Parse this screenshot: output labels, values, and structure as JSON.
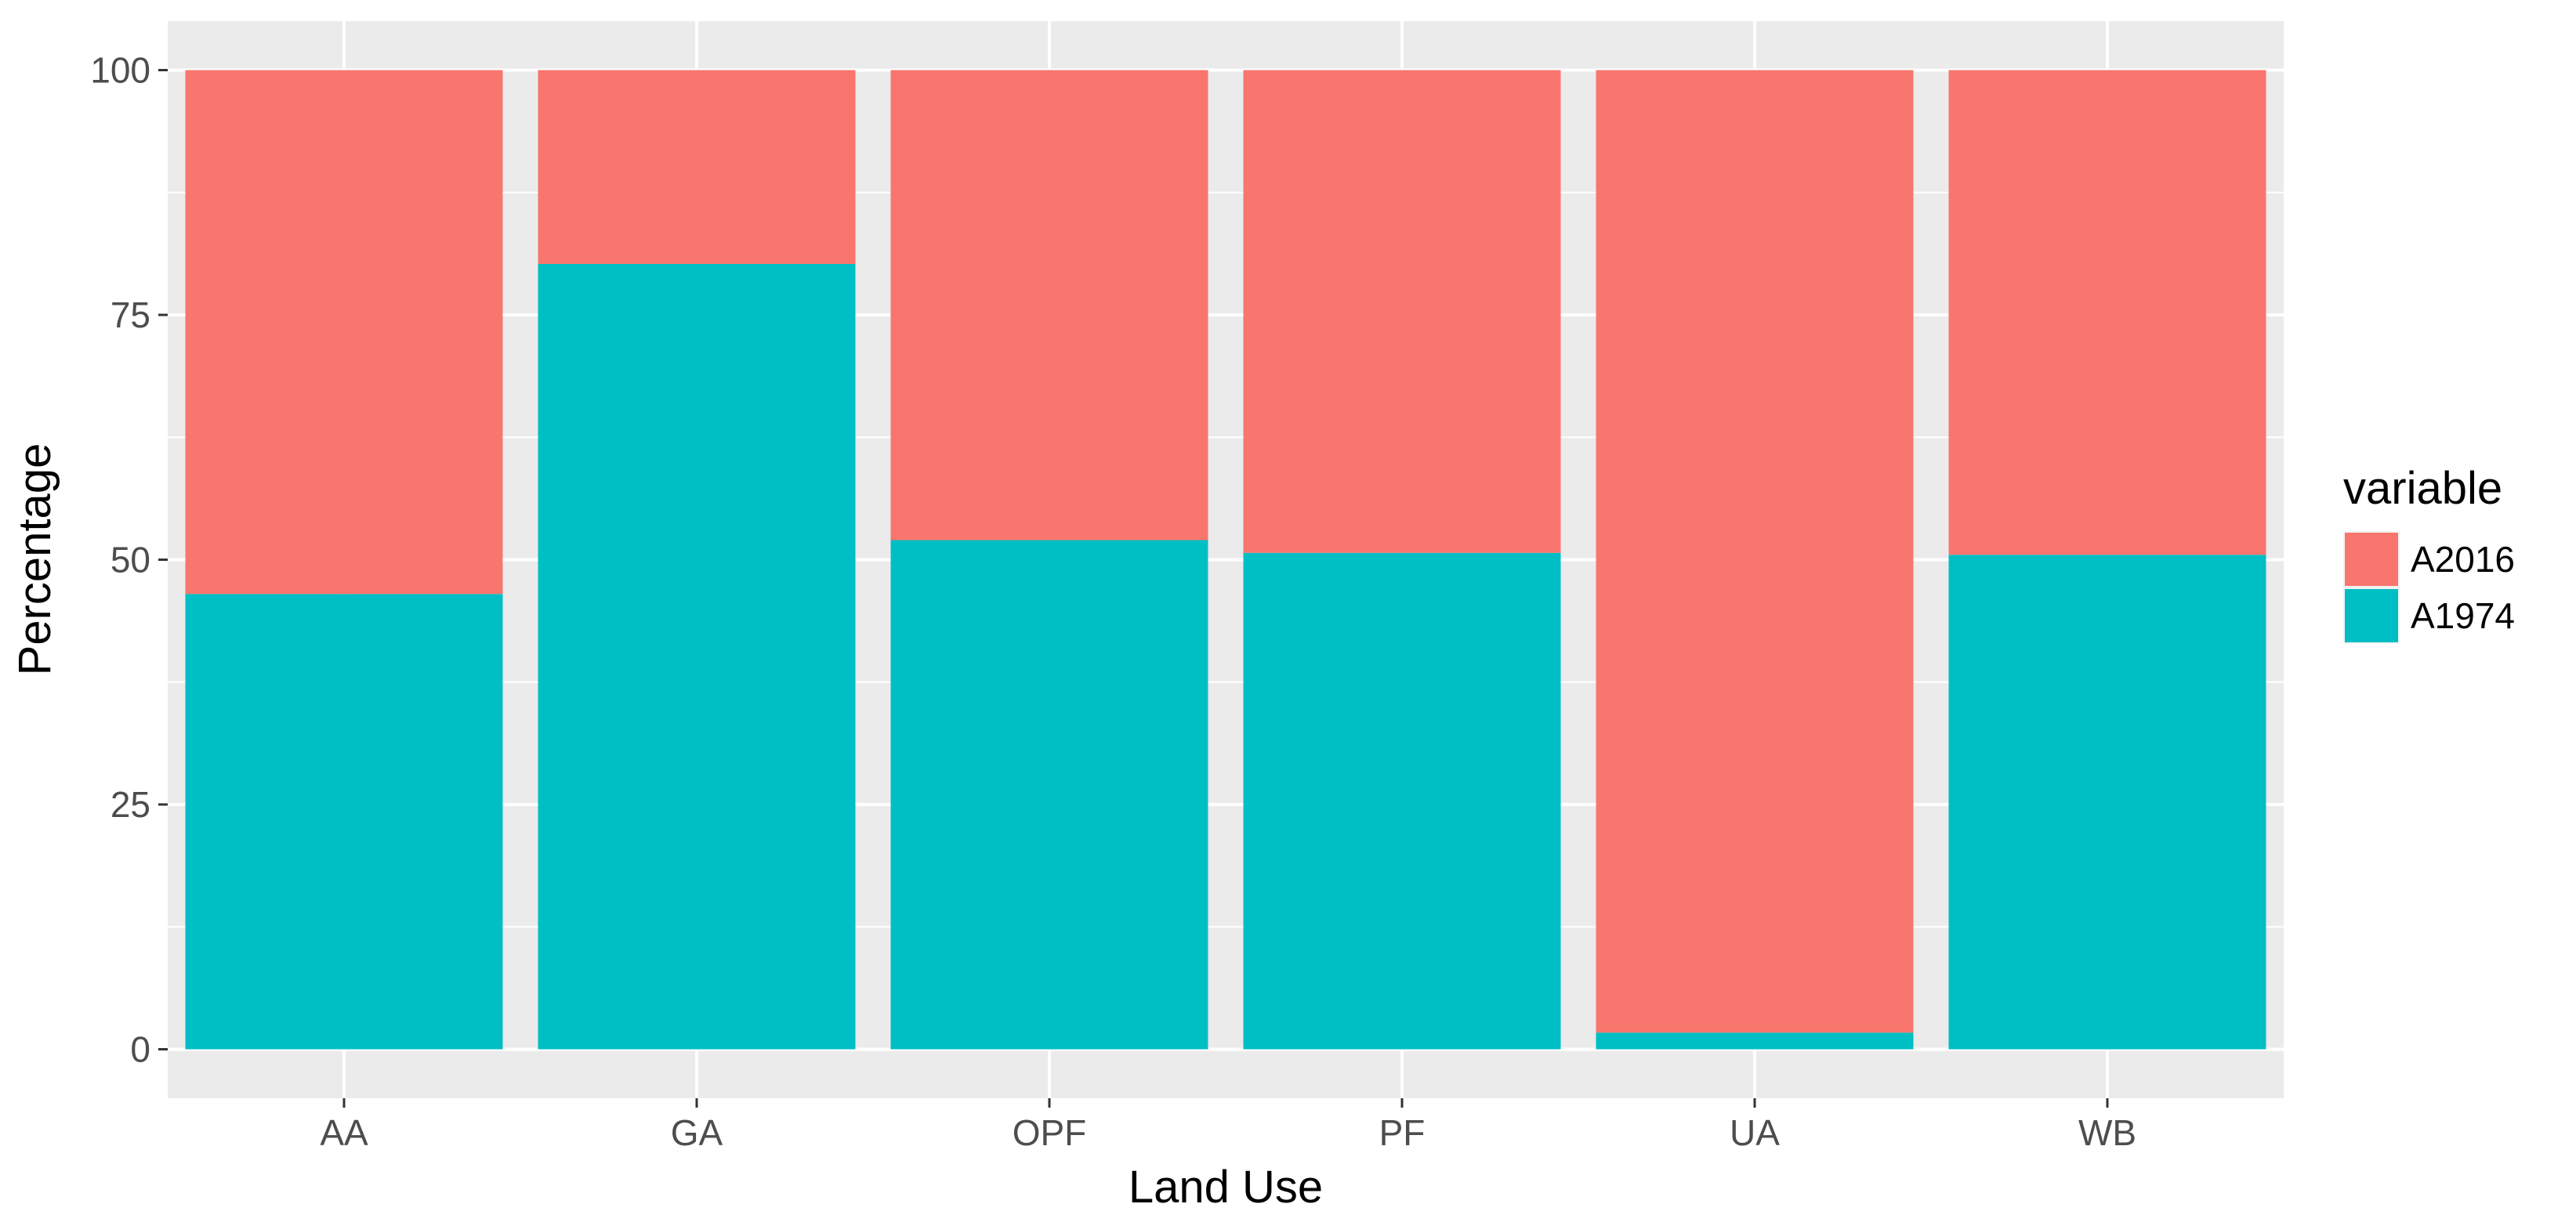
{
  "chart_data": {
    "type": "bar",
    "stacked": true,
    "categories": [
      "AA",
      "GA",
      "OPF",
      "PF",
      "UA",
      "WB"
    ],
    "series": [
      {
        "name": "A1974",
        "values": [
          46.5,
          80.2,
          52.0,
          50.7,
          1.7,
          50.5
        ]
      },
      {
        "name": "A2016",
        "values": [
          53.5,
          19.8,
          48.0,
          49.3,
          98.3,
          49.5
        ]
      }
    ],
    "xlabel": "Land Use",
    "ylabel": "Percentage",
    "ylim": [
      -5,
      105
    ],
    "yticks": [
      0,
      25,
      50,
      75,
      100
    ],
    "grid": true,
    "legend": {
      "title": "variable",
      "position": "right",
      "entries": [
        "A2016",
        "A1974"
      ]
    },
    "colors": {
      "A2016": "#F8766D",
      "A1974": "#00BFC4",
      "panel": "#EBEBEB",
      "grid": "#FFFFFF"
    }
  }
}
